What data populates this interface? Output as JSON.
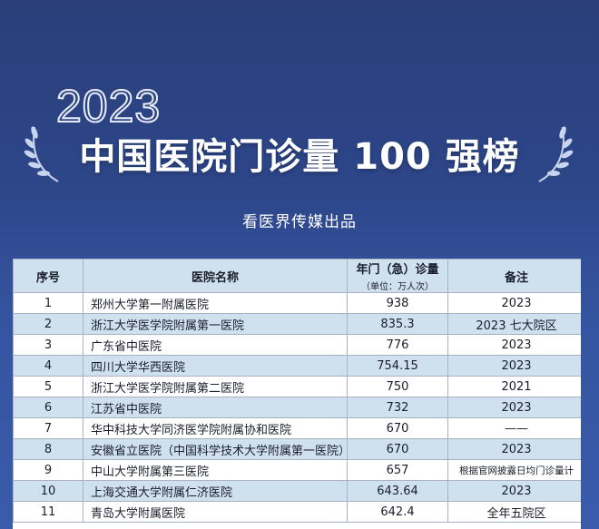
{
  "header": {
    "year": "2023",
    "title": "中国医院门诊量 100 强榜",
    "subtitle": "看医界传媒出品"
  },
  "table": {
    "columns": {
      "num": "序号",
      "name": "医院名称",
      "volume": "年门（急）诊量",
      "volume_unit": "（单位：万人次）",
      "note": "备注"
    },
    "rows": [
      {
        "num": "1",
        "name": "郑州大学第一附属医院",
        "volume": "938",
        "note": "2023"
      },
      {
        "num": "2",
        "name": "浙江大学医学院附属第一医院",
        "volume": "835.3",
        "note": "2023 七大院区"
      },
      {
        "num": "3",
        "name": "广东省中医院",
        "volume": "776",
        "note": "2023"
      },
      {
        "num": "4",
        "name": "四川大学华西医院",
        "volume": "754.15",
        "note": "2023"
      },
      {
        "num": "5",
        "name": "浙江大学医学院附属第二医院",
        "volume": "750",
        "note": "2021"
      },
      {
        "num": "6",
        "name": "江苏省中医院",
        "volume": "732",
        "note": "2023"
      },
      {
        "num": "7",
        "name": "华中科技大学同济医学院附属协和医院",
        "volume": "670",
        "note": "——"
      },
      {
        "num": "8",
        "name": "安徽省立医院（中国科学技术大学附属第一医院）",
        "volume": "670",
        "note": "2023"
      },
      {
        "num": "9",
        "name": "中山大学附属第三医院",
        "volume": "657",
        "note": "根据官网披露日均门诊量计"
      },
      {
        "num": "10",
        "name": "上海交通大学附属仁济医院",
        "volume": "643.64",
        "note": "2023"
      },
      {
        "num": "11",
        "name": "青岛大学附属医院",
        "volume": "642.4",
        "note": "全年五院区"
      }
    ]
  }
}
